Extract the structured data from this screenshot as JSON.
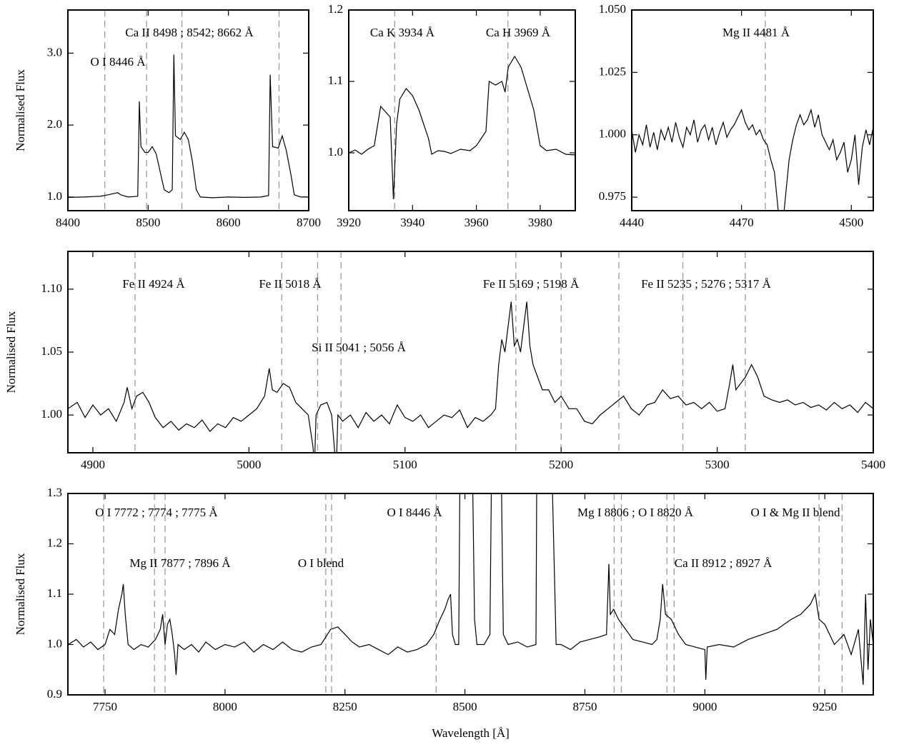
{
  "chart_data": [
    {
      "type": "line",
      "ylabel": "Normalised Flux",
      "color": "#000000",
      "xlim": [
        8400,
        8700
      ],
      "ylim": [
        0.81,
        3.6
      ],
      "xticks": [
        8400,
        8500,
        8600,
        8700
      ],
      "yticks": [
        {
          "value": 1,
          "label": "1.0"
        },
        {
          "value": 2,
          "label": "2.0"
        },
        {
          "value": 3,
          "label": "3.0"
        }
      ],
      "lines": [
        8446,
        8498,
        8542,
        8663
      ],
      "annotations": [
        {
          "text": "Ca II 8498 ; 8542; 8662 Å"
        },
        {
          "text": "O I 8446 Å"
        }
      ],
      "x": [
        8400,
        8420,
        8440,
        8450,
        8462,
        8466,
        8475,
        8487,
        8489,
        8491,
        8496,
        8500,
        8505,
        8510,
        8515,
        8520,
        8526,
        8530,
        8532,
        8534,
        8540,
        8545,
        8550,
        8555,
        8560,
        8565,
        8580,
        8600,
        8620,
        8640,
        8650,
        8652,
        8655,
        8662,
        8667,
        8672,
        8678,
        8682,
        8690,
        8700
      ],
      "values": [
        0.995,
        1.0,
        1.01,
        1.03,
        1.06,
        1.03,
        1.0,
        1.01,
        2.33,
        1.7,
        1.62,
        1.62,
        1.7,
        1.6,
        1.35,
        1.1,
        1.06,
        1.1,
        2.98,
        1.85,
        1.8,
        1.9,
        1.8,
        1.5,
        1.1,
        1.0,
        0.99,
        1.0,
        0.995,
        1.0,
        1.02,
        2.7,
        1.7,
        1.68,
        1.85,
        1.65,
        1.3,
        1.03,
        1.0,
        1.0
      ]
    },
    {
      "type": "line",
      "color": "#000000",
      "xlim": [
        3920,
        3991
      ],
      "ylim": [
        0.919,
        1.2
      ],
      "xticks": [
        3920,
        3940,
        3960,
        3980
      ],
      "yticks": [
        {
          "value": 1,
          "label": "1.0"
        },
        1.1,
        1.2
      ],
      "lines": [
        3934.4,
        3969.9
      ],
      "annotations": [
        {
          "text": "Ca K 3934 Å"
        },
        {
          "text": "Ca H 3969 Å"
        }
      ],
      "x": [
        3920,
        3922,
        3924,
        3926,
        3928,
        3930,
        3932,
        3933,
        3934,
        3935,
        3936,
        3938,
        3940,
        3942,
        3945,
        3946,
        3948,
        3950,
        3952,
        3955,
        3958,
        3960,
        3963,
        3964,
        3966,
        3968,
        3969,
        3970,
        3972,
        3974,
        3976,
        3978,
        3980,
        3982,
        3985,
        3988,
        3991
      ],
      "values": [
        1.0,
        1.004,
        0.998,
        1.005,
        1.01,
        1.065,
        1.055,
        1.05,
        0.935,
        1.04,
        1.075,
        1.09,
        1.08,
        1.06,
        1.02,
        0.998,
        1.003,
        1.002,
        0.999,
        1.005,
        1.003,
        1.01,
        1.03,
        1.1,
        1.095,
        1.1,
        1.085,
        1.12,
        1.135,
        1.12,
        1.09,
        1.06,
        1.01,
        1.003,
        1.005,
        0.998,
        0.997
      ]
    },
    {
      "type": "line",
      "color": "#000000",
      "xlim": [
        4440,
        4506
      ],
      "ylim": [
        0.9696,
        1.05
      ],
      "xticks": [
        4440,
        4470,
        4500
      ],
      "yticks": [
        0.975,
        {
          "value": 1,
          "label": "1.000"
        },
        {
          "value": 1.025,
          "label": "1.025"
        },
        {
          "value": 1.05,
          "label": "1.050"
        }
      ],
      "lines": [
        4476.5
      ],
      "annotations": [
        {
          "text": "Mg II 4481 Å"
        }
      ],
      "x": [
        4440,
        4441,
        4442,
        4443,
        4444,
        4445,
        4446,
        4447,
        4448,
        4449,
        4450,
        4451,
        4452,
        4453,
        4454,
        4455,
        4456,
        4457,
        4458,
        4459,
        4460,
        4461,
        4462,
        4463,
        4464,
        4465,
        4466,
        4467,
        4468,
        4469,
        4470,
        4471,
        4472,
        4473,
        4474,
        4475,
        4476,
        4477,
        4478,
        4479,
        4480,
        4481,
        4482,
        4483,
        4484,
        4485,
        4486,
        4487,
        4488,
        4489,
        4490,
        4491,
        4492,
        4493,
        4494,
        4495,
        4496,
        4497,
        4498,
        4499,
        4500,
        4501,
        4502,
        4503,
        4504,
        4505,
        4506
      ],
      "values": [
        1.002,
        0.993,
        1.0,
        0.996,
        1.004,
        0.995,
        1.001,
        0.994,
        1.002,
        0.998,
        1.003,
        0.997,
        1.005,
        0.999,
        0.995,
        1.003,
        1.0,
        1.006,
        0.997,
        1.002,
        1.004,
        0.998,
        1.003,
        0.996,
        1.001,
        1.005,
        0.999,
        1.002,
        1.004,
        1.007,
        1.01,
        1.005,
        1.002,
        1.004,
        1.0,
        1.002,
        0.998,
        0.996,
        0.99,
        0.985,
        0.97,
        0.96,
        0.975,
        0.99,
        0.998,
        1.004,
        1.008,
        1.004,
        1.006,
        1.01,
        1.003,
        1.008,
        1.0,
        0.997,
        0.994,
        0.998,
        0.99,
        0.993,
        0.997,
        0.985,
        0.99,
        1.0,
        0.98,
        0.995,
        1.002,
        0.996,
        1.003
      ]
    },
    {
      "type": "line",
      "ylabel": "Normalised Flux",
      "color": "#000000",
      "xlim": [
        4884,
        5400
      ],
      "ylim": [
        0.97,
        1.13
      ],
      "xticks": [
        4900,
        5000,
        5100,
        5200,
        5300,
        5400
      ],
      "yticks": [
        {
          "value": 1,
          "label": "1.00"
        },
        1.05,
        {
          "value": 1.1,
          "label": "1.10"
        }
      ],
      "lines": [
        4927,
        5021,
        5044,
        5059,
        5171,
        5200,
        5237,
        5278,
        5318
      ],
      "annotations": [
        {
          "text": "Fe II 4924 Å"
        },
        {
          "text": "Fe II 5018 Å"
        },
        {
          "text": "Si II 5041 ; 5056 Å"
        },
        {
          "text": "Fe II 5169 ; 5198 Å"
        },
        {
          "text": "Fe II 5235 ; 5276 ; 5317 Å"
        }
      ],
      "x": [
        4884,
        4890,
        4895,
        4900,
        4905,
        4910,
        4915,
        4920,
        4922,
        4925,
        4928,
        4932,
        4936,
        4940,
        4945,
        4950,
        4955,
        4960,
        4965,
        4970,
        4975,
        4980,
        4985,
        4990,
        4995,
        5000,
        5005,
        5010,
        5013,
        5015,
        5018,
        5022,
        5026,
        5030,
        5034,
        5038,
        5041,
        5042,
        5043,
        5046,
        5050,
        5053,
        5055,
        5056,
        5057,
        5060,
        5065,
        5070,
        5075,
        5080,
        5085,
        5090,
        5095,
        5100,
        5105,
        5110,
        5115,
        5120,
        5125,
        5130,
        5135,
        5140,
        5145,
        5150,
        5155,
        5158,
        5160,
        5162,
        5164,
        5166,
        5168,
        5170,
        5172,
        5174,
        5176,
        5178,
        5180,
        5182,
        5185,
        5188,
        5192,
        5196,
        5200,
        5205,
        5210,
        5215,
        5220,
        5225,
        5230,
        5235,
        5240,
        5245,
        5250,
        5255,
        5260,
        5265,
        5270,
        5275,
        5280,
        5285,
        5290,
        5295,
        5300,
        5305,
        5308,
        5310,
        5312,
        5315,
        5318,
        5322,
        5326,
        5330,
        5335,
        5340,
        5345,
        5350,
        5355,
        5360,
        5365,
        5370,
        5375,
        5380,
        5385,
        5390,
        5395,
        5400
      ],
      "values": [
        1.005,
        1.01,
        0.998,
        1.008,
        1.0,
        1.005,
        0.995,
        1.01,
        1.022,
        1.005,
        1.015,
        1.018,
        1.01,
        0.998,
        0.99,
        0.995,
        0.988,
        0.993,
        0.99,
        0.996,
        0.987,
        0.993,
        0.99,
        0.998,
        0.995,
        1.0,
        1.005,
        1.015,
        1.037,
        1.02,
        1.018,
        1.025,
        1.022,
        1.01,
        1.005,
        1.0,
        0.975,
        0.96,
        1.0,
        1.008,
        1.01,
        1.0,
        0.97,
        0.96,
        1.0,
        0.995,
        1.0,
        0.99,
        1.002,
        0.995,
        1.0,
        0.993,
        1.008,
        0.998,
        0.995,
        1.0,
        0.99,
        0.995,
        1.0,
        0.998,
        1.004,
        0.99,
        0.998,
        0.995,
        1.0,
        1.005,
        1.04,
        1.06,
        1.05,
        1.07,
        1.09,
        1.055,
        1.06,
        1.05,
        1.07,
        1.09,
        1.055,
        1.04,
        1.03,
        1.02,
        1.02,
        1.01,
        1.015,
        1.005,
        1.005,
        0.995,
        0.993,
        1.0,
        1.005,
        1.01,
        1.015,
        1.005,
        1.0,
        1.008,
        1.01,
        1.02,
        1.013,
        1.015,
        1.008,
        1.01,
        1.005,
        1.01,
        1.003,
        1.005,
        1.025,
        1.04,
        1.02,
        1.025,
        1.03,
        1.04,
        1.03,
        1.015,
        1.012,
        1.01,
        1.012,
        1.008,
        1.01,
        1.006,
        1.008,
        1.004,
        1.01,
        1.005,
        1.008,
        1.002,
        1.01,
        1.005
      ]
    },
    {
      "type": "line",
      "ylabel": "Normalised Flux",
      "xlabel": "Wavelength [Å]",
      "color": "#000000",
      "xlim": [
        7672.5,
        9351
      ],
      "ylim": [
        0.9,
        1.3
      ],
      "xticks": [
        7750,
        8000,
        8250,
        8500,
        8750,
        9000,
        9250
      ],
      "yticks": [
        0.9,
        {
          "value": 1,
          "label": "1.0"
        },
        1.1,
        1.2,
        1.3
      ],
      "lines": [
        7747,
        7853,
        7875,
        8210,
        8222,
        8440,
        8811,
        8826,
        8921,
        8936,
        9238,
        9286
      ],
      "annotations": [
        {
          "text": "O I 7772 ; 7774 ; 7775 Å"
        },
        {
          "text": "Mg II 7877 ; 7896 Å"
        },
        {
          "text": "O I blend"
        },
        {
          "text": "O I 8446 Å"
        },
        {
          "text": "Mg I 8806 ; O I 8820 Å"
        },
        {
          "text": "Ca II 8912 ; 8927 Å"
        },
        {
          "text": "O I & Mg II blend"
        }
      ],
      "x": [
        7673,
        7690,
        7705,
        7720,
        7735,
        7750,
        7760,
        7770,
        7778,
        7785,
        7788,
        7792,
        7798,
        7810,
        7825,
        7840,
        7855,
        7865,
        7870,
        7875,
        7880,
        7885,
        7890,
        7895,
        7898,
        7902,
        7915,
        7930,
        7945,
        7960,
        7980,
        8000,
        8020,
        8040,
        8060,
        8080,
        8100,
        8120,
        8140,
        8160,
        8180,
        8200,
        8210,
        8220,
        8235,
        8250,
        8265,
        8280,
        8300,
        8320,
        8340,
        8360,
        8380,
        8400,
        8420,
        8435,
        8448,
        8458,
        8465,
        8470,
        8474,
        8480,
        8487,
        8490,
        8515,
        8520,
        8525,
        8540,
        8552,
        8556,
        8575,
        8580,
        8590,
        8610,
        8630,
        8648,
        8650,
        8680,
        8690,
        8700,
        8720,
        8740,
        8760,
        8780,
        8795,
        8800,
        8803,
        8810,
        8820,
        8835,
        8850,
        8870,
        8890,
        8900,
        8907,
        8912,
        8918,
        8930,
        8945,
        8960,
        8980,
        9000,
        9002,
        9005,
        9030,
        9060,
        9090,
        9120,
        9150,
        9180,
        9200,
        9220,
        9230,
        9238,
        9250,
        9270,
        9290,
        9305,
        9320,
        9330,
        9335,
        9340,
        9345,
        9351
      ],
      "values": [
        1.0,
        1.01,
        0.995,
        1.005,
        0.99,
        1.0,
        1.03,
        1.02,
        1.07,
        1.1,
        1.12,
        1.06,
        1.0,
        0.99,
        1.0,
        0.995,
        1.01,
        1.03,
        1.06,
        1.0,
        1.04,
        1.05,
        1.02,
        0.98,
        0.94,
        1.0,
        0.99,
        1.0,
        0.985,
        1.005,
        0.99,
        1.0,
        0.995,
        1.005,
        0.985,
        1.0,
        0.99,
        1.005,
        0.99,
        0.985,
        0.995,
        1.0,
        1.015,
        1.03,
        1.035,
        1.02,
        1.005,
        0.995,
        1.0,
        0.99,
        0.98,
        0.995,
        0.985,
        0.99,
        1.0,
        1.02,
        1.05,
        1.07,
        1.09,
        1.1,
        1.02,
        1.0,
        1.0,
        1.4,
        1.4,
        1.05,
        1.0,
        1.0,
        1.02,
        1.4,
        1.4,
        1.02,
        1.0,
        1.005,
        0.995,
        1.0,
        1.4,
        1.4,
        1.0,
        1.0,
        0.99,
        1.005,
        1.01,
        1.015,
        1.02,
        1.16,
        1.06,
        1.07,
        1.05,
        1.03,
        1.01,
        1.005,
        1.0,
        1.01,
        1.05,
        1.12,
        1.06,
        1.05,
        1.02,
        1.0,
        0.995,
        0.99,
        0.93,
        0.995,
        1.0,
        0.995,
        1.01,
        1.02,
        1.03,
        1.05,
        1.06,
        1.08,
        1.1,
        1.05,
        1.04,
        1.0,
        1.02,
        0.98,
        1.03,
        0.92,
        1.1,
        0.95,
        1.05,
        1.0
      ]
    }
  ]
}
